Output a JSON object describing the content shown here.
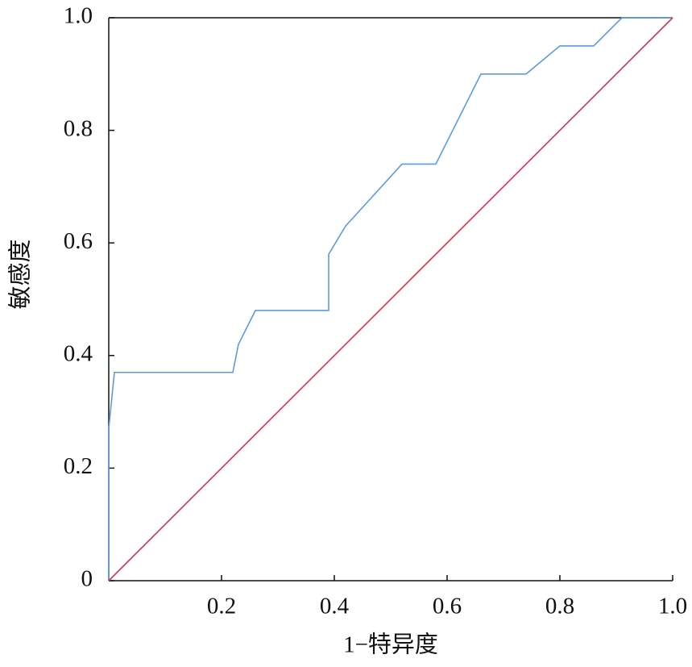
{
  "chart_data": {
    "type": "line",
    "xlabel": "1−特异度",
    "ylabel": "敏感度",
    "series": [
      {
        "color": "#5b9be6",
        "x": [
          0,
          0,
          0.01,
          0.22,
          0.23,
          0.26,
          0.39,
          0.39,
          0.42,
          0.52,
          0.58,
          0.66,
          0.74,
          0.8,
          0.86,
          0.91,
          1
        ],
        "values": [
          0,
          0.27,
          0.37,
          0.37,
          0.42,
          0.48,
          0.48,
          0.58,
          0.63,
          0.74,
          0.74,
          0.9,
          0.9,
          0.95,
          0.95,
          1,
          1
        ]
      },
      {
        "color": "#e0304a",
        "x": [
          0,
          1
        ],
        "values": [
          0,
          1
        ]
      }
    ],
    "xlim": [
      0,
      1
    ],
    "ylim": [
      0,
      1
    ],
    "xticks": [
      0.2,
      0.4,
      0.6,
      0.8,
      {
        "value": 1,
        "label": "1.0"
      }
    ],
    "yticks": [
      0,
      0.2,
      0.4,
      0.6,
      0.8,
      {
        "value": 1,
        "label": "1.0"
      }
    ]
  }
}
